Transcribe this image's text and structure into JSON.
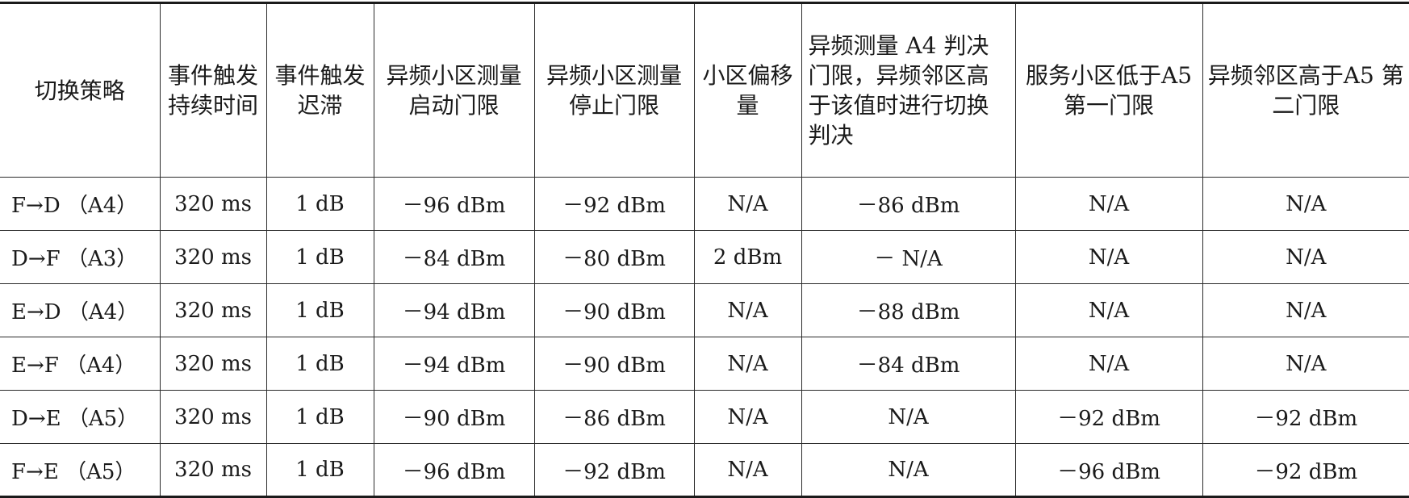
{
  "table": {
    "headers": [
      "切换策略",
      "事件触发持续时间",
      "事件触发迟滞",
      "异频小区测量启动门限",
      "异频小区测量停止门限",
      "小区偏移量",
      "异频测量 A4 判决门限，异频邻区高于该值时进行切换判决",
      "服务小区低于A5 第一门限",
      "异频邻区高于A5 第二门限"
    ],
    "rows": [
      [
        "F→D （A4）",
        "320 ms",
        "1 dB",
        "－96 dBm",
        "－92 dBm",
        "N/A",
        "－86 dBm",
        "N/A",
        "N/A"
      ],
      [
        "D→F （A3）",
        "320 ms",
        "1 dB",
        "－84 dBm",
        "－80 dBm",
        "2 dBm",
        "－ N/A",
        "N/A",
        "N/A"
      ],
      [
        "E→D （A4）",
        "320 ms",
        "1 dB",
        "－94 dBm",
        "－90 dBm",
        "N/A",
        "－88 dBm",
        "N/A",
        "N/A"
      ],
      [
        "E→F （A4）",
        "320 ms",
        "1 dB",
        "－94 dBm",
        "－90 dBm",
        "N/A",
        "－84 dBm",
        "N/A",
        "N/A"
      ],
      [
        "D→E （A5）",
        "320 ms",
        "1 dB",
        "－90 dBm",
        "－86 dBm",
        "N/A",
        "N/A",
        "－92 dBm",
        "－92 dBm"
      ],
      [
        "F→E （A5）",
        "320 ms",
        "1 dB",
        "－96 dBm",
        "－92 dBm",
        "N/A",
        "N/A",
        "－96 dBm",
        "－92 dBm"
      ]
    ]
  }
}
